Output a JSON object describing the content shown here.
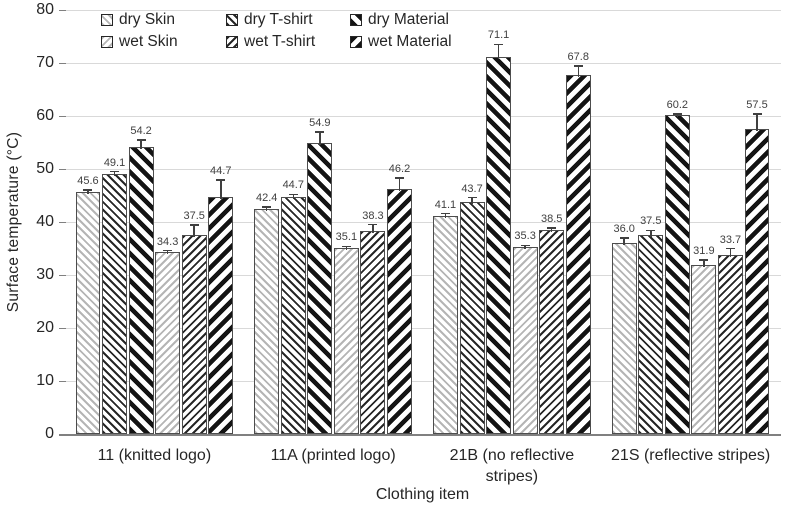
{
  "colors": {
    "background": "#ffffff",
    "gridline": "#d9d9d9",
    "axis_line": "#808080",
    "text": "#262626",
    "value_label_text": "#404040",
    "hatch_dark": "#1a1a1a",
    "hatch_light": "#b5b5b5"
  },
  "chart_data": {
    "type": "bar",
    "title": "",
    "xlabel": "Clothing item",
    "ylabel": "Surface temperature (°C)",
    "ylim": [
      0,
      80
    ],
    "yticks": [
      0,
      10,
      20,
      30,
      40,
      50,
      60,
      70,
      80
    ],
    "grid": true,
    "legend_position": "top-left, 2 rows x 3 columns",
    "value_labels": "one decimal, above error bars",
    "categories": [
      "11 (knitted logo)",
      "11A (printed logo)",
      "21B (no reflective stripes)",
      "21S (reflective stripes)"
    ],
    "series": [
      {
        "name": "dry Skin",
        "hatch": "thin-light-gray-backslash",
        "values": [
          45.6,
          42.4,
          41.1,
          36.0
        ],
        "errors": [
          0.4,
          0.4,
          0.5,
          1.0
        ]
      },
      {
        "name": "dry T-shirt",
        "hatch": "thin-dark-backslash",
        "values": [
          49.1,
          44.7,
          43.7,
          37.5
        ],
        "errors": [
          0.4,
          0.5,
          0.9,
          0.9
        ]
      },
      {
        "name": "dry Material",
        "hatch": "thick-dark-backslash",
        "values": [
          54.2,
          54.9,
          71.1,
          60.2
        ],
        "errors": [
          1.3,
          2.1,
          2.4,
          0.2
        ]
      },
      {
        "name": "wet Skin",
        "hatch": "thin-light-gray-slash",
        "values": [
          34.3,
          35.1,
          35.3,
          31.9
        ],
        "errors": [
          0.3,
          0.3,
          0.3,
          0.9
        ]
      },
      {
        "name": "wet T-shirt",
        "hatch": "thin-dark-slash",
        "values": [
          37.5,
          38.3,
          38.5,
          33.7
        ],
        "errors": [
          1.9,
          1.2,
          0.4,
          1.3
        ]
      },
      {
        "name": "wet Material",
        "hatch": "thick-dark-slash",
        "values": [
          44.7,
          46.2,
          67.8,
          57.5
        ],
        "errors": [
          3.2,
          2.1,
          1.6,
          2.9
        ]
      }
    ]
  }
}
